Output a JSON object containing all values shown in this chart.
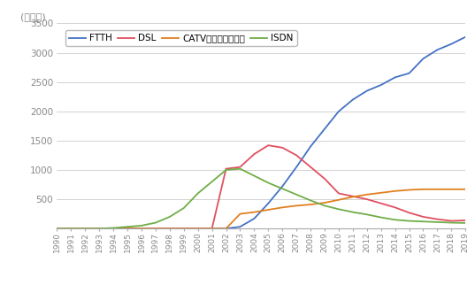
{
  "years": [
    1990,
    1991,
    1992,
    1993,
    1994,
    1995,
    1996,
    1997,
    1998,
    1999,
    2000,
    2001,
    2002,
    2003,
    2004,
    2005,
    2006,
    2007,
    2008,
    2009,
    2010,
    2011,
    2012,
    2013,
    2014,
    2015,
    2016,
    2017,
    2018,
    2019
  ],
  "FTTH": [
    0,
    0,
    0,
    0,
    0,
    0,
    0,
    0,
    0,
    0,
    0,
    0,
    0,
    30,
    170,
    430,
    720,
    1050,
    1400,
    1700,
    2000,
    2200,
    2350,
    2450,
    2580,
    2650,
    2900,
    3050,
    3150,
    3270
  ],
  "DSL": [
    0,
    0,
    0,
    0,
    0,
    0,
    0,
    0,
    0,
    0,
    0,
    0,
    1020,
    1050,
    1270,
    1420,
    1380,
    1250,
    1050,
    850,
    600,
    550,
    500,
    430,
    360,
    270,
    200,
    160,
    130,
    140
  ],
  "CATV": [
    0,
    0,
    0,
    0,
    0,
    0,
    0,
    0,
    0,
    0,
    0,
    0,
    0,
    250,
    280,
    320,
    360,
    390,
    410,
    440,
    490,
    540,
    580,
    610,
    640,
    660,
    670,
    670,
    670,
    670
  ],
  "ISDN": [
    0,
    0,
    0,
    0,
    10,
    30,
    50,
    100,
    200,
    350,
    600,
    800,
    1000,
    1020,
    900,
    780,
    680,
    580,
    480,
    390,
    330,
    280,
    240,
    190,
    150,
    130,
    120,
    110,
    100,
    95
  ],
  "ylabel": "(万契約)",
  "ylim": [
    0,
    3500
  ],
  "yticks": [
    0,
    500,
    1000,
    1500,
    2000,
    2500,
    3000,
    3500
  ],
  "colors": {
    "FTTH": "#4472C4",
    "DSL": "#E05060",
    "CATV": "#E08020",
    "ISDN": "#70AD47"
  },
  "legend_labels": [
    "FTTH",
    "DSL",
    "CATVインターネット",
    "ISDN"
  ],
  "background": "#FFFFFF",
  "grid_color": "#CCCCCC",
  "tick_color": "#888888",
  "spine_color": "#AAAAAA"
}
